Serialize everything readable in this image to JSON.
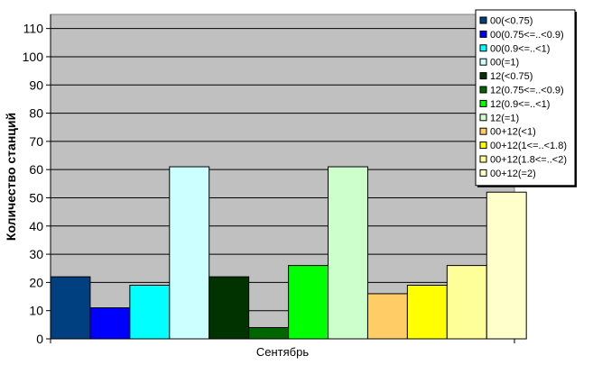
{
  "chart_data": {
    "type": "bar",
    "categories": [
      "Сентябрь"
    ],
    "ylabel": "Количество станций",
    "xlabel": "",
    "ylim": [
      0,
      115
    ],
    "yticks": [
      0,
      10,
      20,
      30,
      40,
      50,
      60,
      70,
      80,
      90,
      100,
      110
    ],
    "grid": true,
    "legend_position": "top-right",
    "plot_background": "#c0c0c0",
    "series": [
      {
        "name": "00(<0.75)",
        "values": [
          22
        ],
        "color": "#003f80"
      },
      {
        "name": "00(0.75<=..<0.9)",
        "values": [
          11
        ],
        "color": "#0000ff"
      },
      {
        "name": "00(0.9<=..<1)",
        "values": [
          19
        ],
        "color": "#00ffff"
      },
      {
        "name": "00(=1)",
        "values": [
          61
        ],
        "color": "#ccffff"
      },
      {
        "name": "12(<0.75)",
        "values": [
          22
        ],
        "color": "#003300"
      },
      {
        "name": "12(0.75<=..<0.9)",
        "values": [
          4
        ],
        "color": "#006600"
      },
      {
        "name": "12(0.9<=..<1)",
        "values": [
          26
        ],
        "color": "#00ff00"
      },
      {
        "name": "12(=1)",
        "values": [
          61
        ],
        "color": "#ccffcc"
      },
      {
        "name": "00+12(<1)",
        "values": [
          16
        ],
        "color": "#ffcc66"
      },
      {
        "name": "00+12(1<=..<1.8)",
        "values": [
          19
        ],
        "color": "#ffff00"
      },
      {
        "name": "00+12(1.8<=..<2)",
        "values": [
          26
        ],
        "color": "#ffff99"
      },
      {
        "name": "00+12(=2)",
        "values": [
          52
        ],
        "color": "#ffffcc"
      }
    ]
  }
}
